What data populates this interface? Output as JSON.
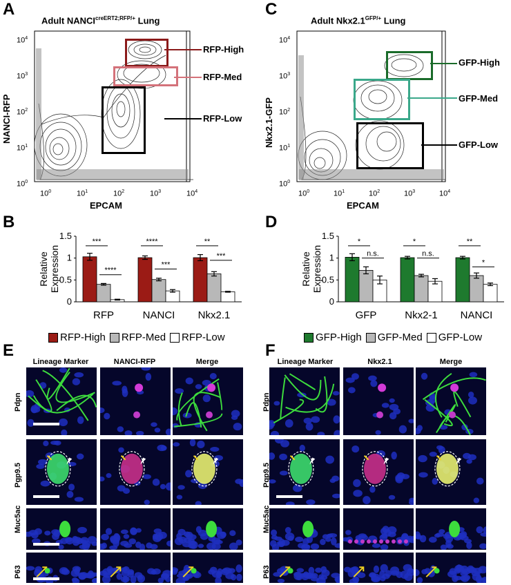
{
  "panels": {
    "a": "A",
    "b": "B",
    "c": "C",
    "d": "D",
    "e": "E",
    "f": "F"
  },
  "flowA": {
    "title_main": "Adult NANCI",
    "title_sup": "creERT2;RFP/+",
    "title_tail": " Lung",
    "ylabel": "NANCI-RFP",
    "xlabel": "EPCAM",
    "gates": [
      "RFP-High",
      "RFP-Med",
      "RFP-Low"
    ],
    "gate_colors": [
      "#8b1a1a",
      "#d4727a",
      "#000000"
    ]
  },
  "flowC": {
    "title_main": "Adult Nkx2.1",
    "title_sup": "GFP/+",
    "title_tail": " Lung",
    "ylabel": "Nkx2.1-GFP",
    "xlabel": "EPCAM",
    "gates": [
      "GFP-High",
      "GFP-Med",
      "GFP-Low"
    ],
    "gate_colors": [
      "#1a6b2a",
      "#3aa88a",
      "#000000"
    ]
  },
  "flow_ticks": {
    "y": [
      {
        "b": "10",
        "e": "4"
      },
      {
        "b": "10",
        "e": "3"
      },
      {
        "b": "10",
        "e": "2"
      },
      {
        "b": "10",
        "e": "1"
      },
      {
        "b": "10",
        "e": "0"
      }
    ],
    "x": [
      {
        "b": "10",
        "e": "0"
      },
      {
        "b": "10",
        "e": "1"
      },
      {
        "b": "10",
        "e": "2"
      },
      {
        "b": "10",
        "e": "3"
      },
      {
        "b": "10",
        "e": "4"
      }
    ]
  },
  "chart_data": [
    {
      "type": "bar",
      "panel": "B",
      "ylabel": "Relative Expression",
      "ylim": [
        0,
        1.5
      ],
      "yticks": [
        "0",
        "0.5",
        "1",
        "1.5"
      ],
      "categories": [
        "RFP",
        "NANCI",
        "Nkx2.1"
      ],
      "series": [
        {
          "name": "RFP-High",
          "color": "#9b1b15",
          "values": [
            1.03,
            1.01,
            1.01
          ],
          "err": [
            0.08,
            0.04,
            0.07
          ]
        },
        {
          "name": "RFP-Med",
          "color": "#b8b8b8",
          "values": [
            0.4,
            0.51,
            0.64
          ],
          "err": [
            0.02,
            0.03,
            0.05
          ]
        },
        {
          "name": "RFP-Low",
          "color": "#ffffff",
          "values": [
            0.05,
            0.25,
            0.23
          ],
          "err": [
            0.01,
            0.03,
            0.01
          ]
        }
      ],
      "sig": [
        {
          "cat": 0,
          "from": 0,
          "to": 1,
          "text": "***",
          "y": 1.28
        },
        {
          "cat": 0,
          "from": 1,
          "to": 2,
          "text": "****",
          "y": 0.62
        },
        {
          "cat": 1,
          "from": 0,
          "to": 1,
          "text": "****",
          "y": 1.28
        },
        {
          "cat": 1,
          "from": 1,
          "to": 2,
          "text": "***",
          "y": 0.75
        },
        {
          "cat": 2,
          "from": 0,
          "to": 1,
          "text": "**",
          "y": 1.28
        },
        {
          "cat": 2,
          "from": 1,
          "to": 2,
          "text": "***",
          "y": 0.95
        }
      ]
    },
    {
      "type": "bar",
      "panel": "D",
      "ylabel": "Relative Expression",
      "ylim": [
        0,
        1.5
      ],
      "yticks": [
        "0",
        "0.5",
        "1",
        "1.5"
      ],
      "categories": [
        "GFP",
        "Nkx2-1",
        "NANCI"
      ],
      "series": [
        {
          "name": "GFP-High",
          "color": "#1e7a2e",
          "values": [
            1.02,
            1.01,
            1.01
          ],
          "err": [
            0.08,
            0.03,
            0.03
          ]
        },
        {
          "name": "GFP-Med",
          "color": "#b8b8b8",
          "values": [
            0.72,
            0.6,
            0.6
          ],
          "err": [
            0.08,
            0.03,
            0.06
          ]
        },
        {
          "name": "GFP-Low",
          "color": "#ffffff",
          "values": [
            0.5,
            0.47,
            0.4
          ],
          "err": [
            0.09,
            0.06,
            0.03
          ]
        }
      ],
      "sig": [
        {
          "cat": 0,
          "from": 0,
          "to": 1,
          "text": "*",
          "y": 1.28
        },
        {
          "cat": 0,
          "from": 1,
          "to": 2,
          "text": "n.s.",
          "y": 1.0
        },
        {
          "cat": 1,
          "from": 0,
          "to": 1,
          "text": "*",
          "y": 1.28
        },
        {
          "cat": 1,
          "from": 1,
          "to": 2,
          "text": "n.s.",
          "y": 1.0
        },
        {
          "cat": 2,
          "from": 0,
          "to": 1,
          "text": "**",
          "y": 1.28
        },
        {
          "cat": 2,
          "from": 1,
          "to": 2,
          "text": "*",
          "y": 0.8
        }
      ]
    }
  ],
  "legendB": [
    "RFP-High",
    "RFP-Med",
    "RFP-Low"
  ],
  "legendD": [
    "GFP-High",
    "GFP-Med",
    "GFP-Low"
  ],
  "panelE": {
    "cols": [
      "Lineage Marker",
      "NANCI-RFP",
      "Merge"
    ],
    "rows": [
      "Pdpn",
      "Pgp9.5",
      "Muc5ac",
      "P63"
    ]
  },
  "panelF": {
    "cols": [
      "Lineage Marker",
      "Nkx2.1",
      "Merge"
    ],
    "rows": [
      "Pdpn",
      "Pgp9.5",
      "Muc5ac",
      "P63"
    ]
  }
}
